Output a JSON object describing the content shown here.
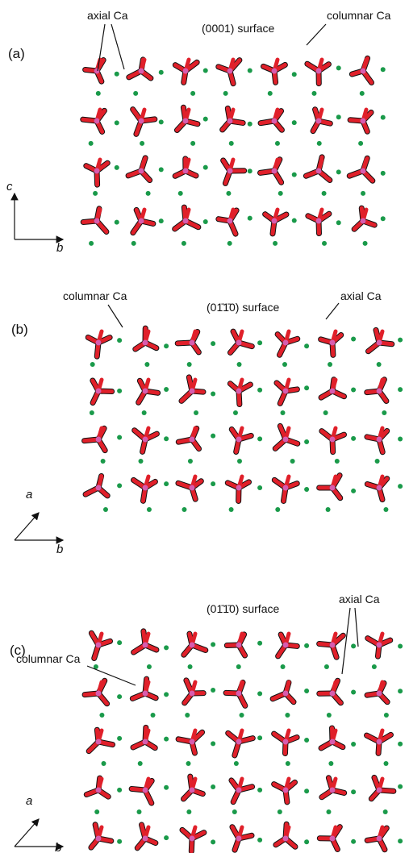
{
  "panels": [
    {
      "label": "(a)",
      "surface": "(0001) surface",
      "annotations": [
        "axial Ca",
        "columnar Ca"
      ],
      "axes": [
        "c",
        "b"
      ]
    },
    {
      "label": "(b)",
      "surface": "(01̄1̄0) surface",
      "annotations": [
        "columnar Ca",
        "axial Ca"
      ],
      "axes": [
        "a",
        "b"
      ]
    },
    {
      "label": "(c)",
      "surface": "(01̄1̄0) surface",
      "annotations": [
        "axial Ca",
        "columnar Ca"
      ],
      "axes": [
        "a",
        "b"
      ]
    }
  ]
}
